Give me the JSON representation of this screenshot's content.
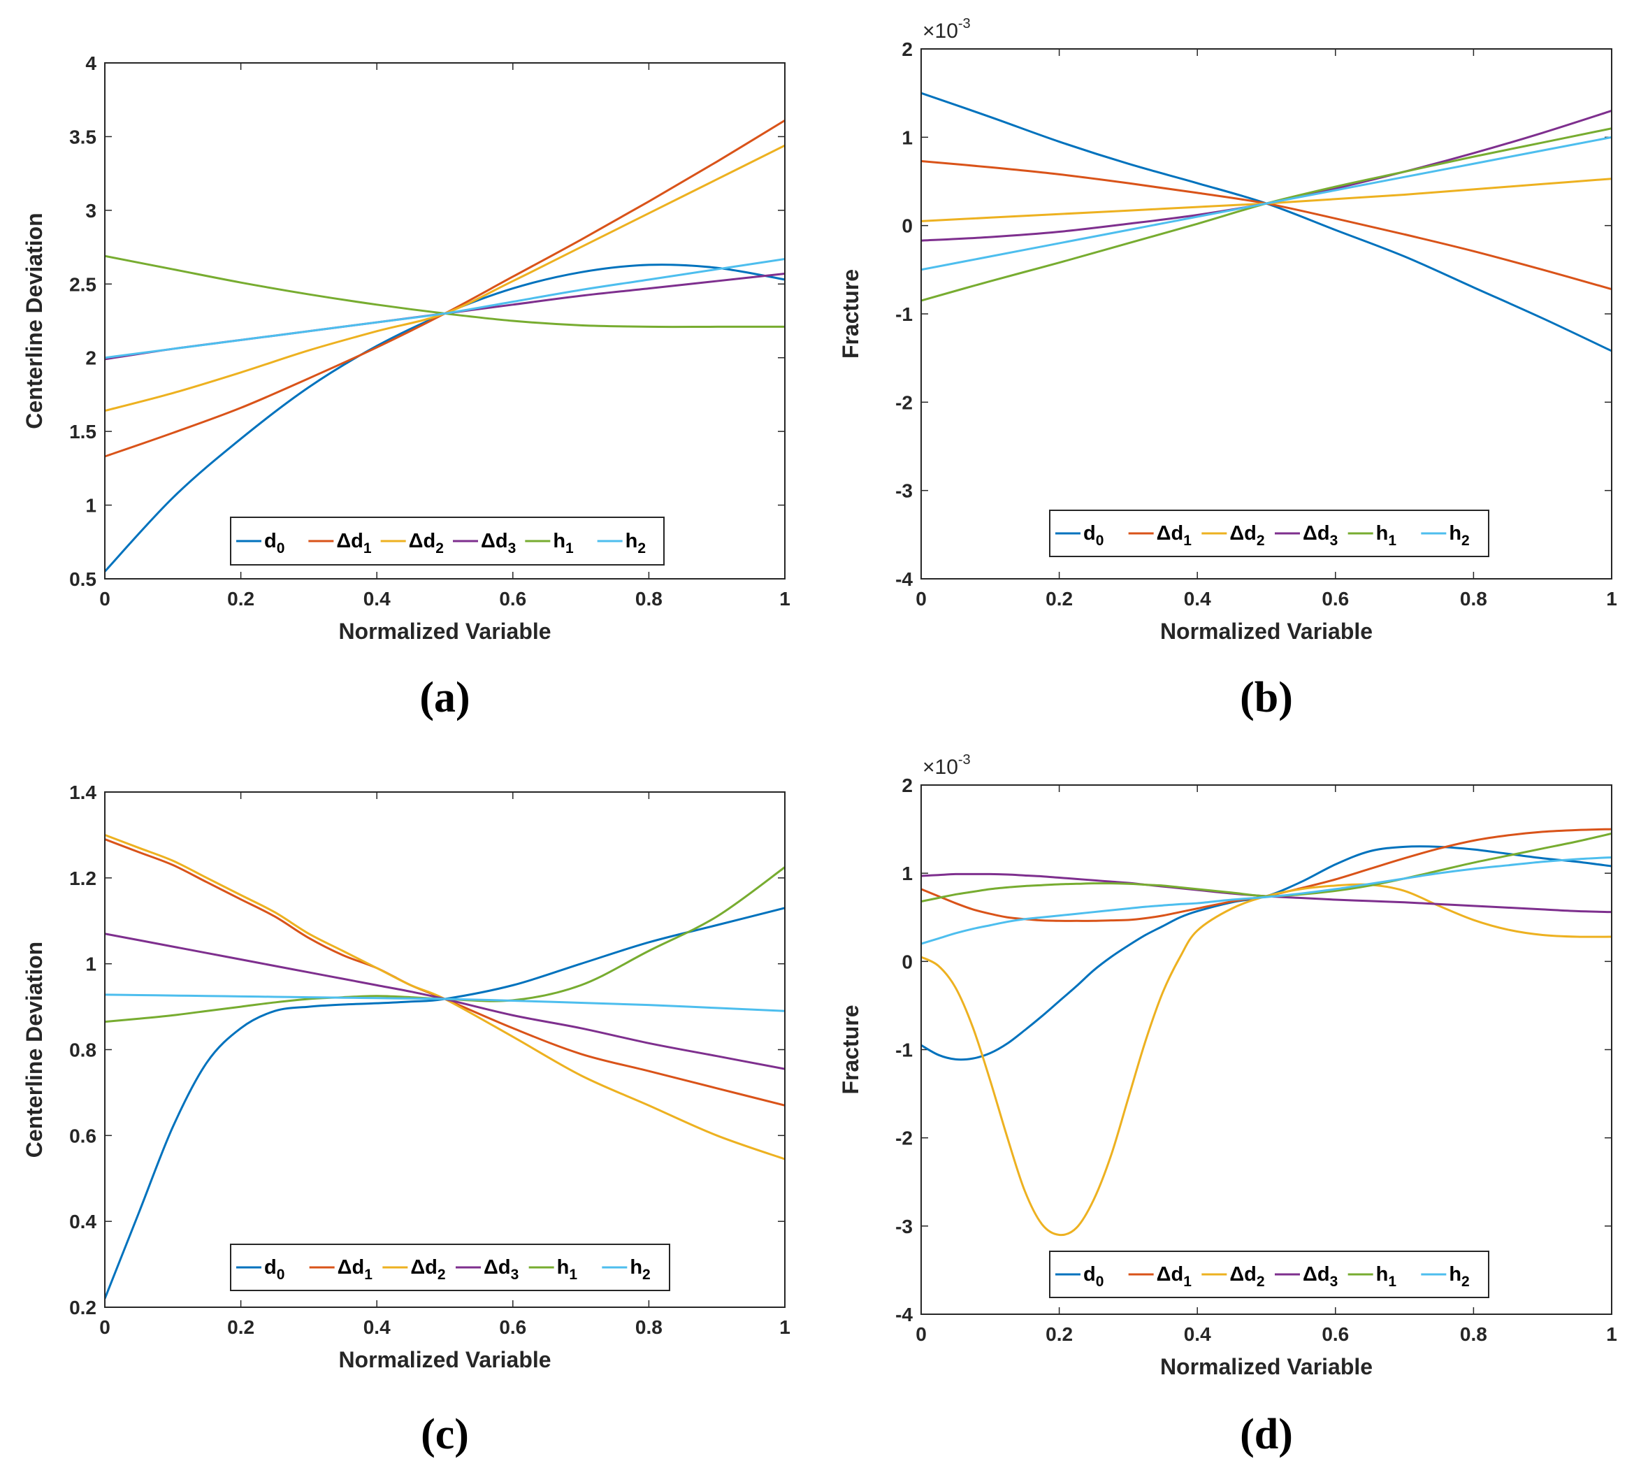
{
  "chart_data": [
    {
      "type": "line",
      "panel_label": "(a)",
      "xlabel": "Normalized Variable",
      "ylabel": "Centerline Deviation",
      "xlim": [
        0,
        1
      ],
      "ylim": [
        0.5,
        4
      ],
      "xticks": [
        0,
        0.2,
        0.4,
        0.6,
        0.8,
        1
      ],
      "xtick_labels": [
        "0",
        "0.2",
        "0.4",
        "0.6",
        "0.8",
        "1"
      ],
      "yticks": [
        0.5,
        1,
        1.5,
        2,
        2.5,
        3,
        3.5,
        4
      ],
      "ytick_labels": [
        "0.5",
        "1",
        "1.5",
        "2",
        "2.5",
        "3",
        "3.5",
        "4"
      ],
      "exponent": "",
      "legend": "bottom-center",
      "x": [
        0,
        0.1,
        0.2,
        0.3,
        0.4,
        0.5,
        0.6,
        0.7,
        0.8,
        0.9,
        1
      ],
      "series": [
        {
          "name": "d0",
          "values": [
            0.55,
            1.05,
            1.45,
            1.8,
            2.08,
            2.3,
            2.47,
            2.58,
            2.63,
            2.61,
            2.53
          ]
        },
        {
          "name": "Δd1",
          "values": [
            1.33,
            1.49,
            1.66,
            1.86,
            2.07,
            2.3,
            2.55,
            2.8,
            3.06,
            3.33,
            3.61
          ]
        },
        {
          "name": "Δd2",
          "values": [
            1.64,
            1.76,
            1.9,
            2.05,
            2.18,
            2.3,
            2.52,
            2.75,
            2.98,
            3.21,
            3.44
          ]
        },
        {
          "name": "Δd3",
          "values": [
            1.99,
            2.06,
            2.12,
            2.18,
            2.24,
            2.3,
            2.36,
            2.42,
            2.47,
            2.52,
            2.57
          ]
        },
        {
          "name": "h1",
          "values": [
            2.69,
            2.6,
            2.51,
            2.43,
            2.36,
            2.3,
            2.25,
            2.22,
            2.21,
            2.21,
            2.21
          ]
        },
        {
          "name": "h2",
          "values": [
            2.0,
            2.06,
            2.12,
            2.18,
            2.24,
            2.3,
            2.38,
            2.46,
            2.53,
            2.6,
            2.67
          ]
        }
      ]
    },
    {
      "type": "line",
      "panel_label": "(b)",
      "xlabel": "Normalized Variable",
      "ylabel": "Fracture",
      "xlim": [
        0,
        1
      ],
      "ylim": [
        -4,
        2
      ],
      "xticks": [
        0,
        0.2,
        0.4,
        0.6,
        0.8,
        1
      ],
      "xtick_labels": [
        "0",
        "0.2",
        "0.4",
        "0.6",
        "0.8",
        "1"
      ],
      "yticks": [
        -4,
        -3,
        -2,
        -1,
        0,
        1,
        2
      ],
      "ytick_labels": [
        "-4",
        "-3",
        "-2",
        "-1",
        "0",
        "1",
        "2"
      ],
      "exponent": "×10",
      "exponent_power": "-3",
      "legend": "bottom-center",
      "x": [
        0,
        0.1,
        0.2,
        0.3,
        0.4,
        0.5,
        0.6,
        0.7,
        0.8,
        0.9,
        1
      ],
      "series": [
        {
          "name": "d0",
          "values": [
            1.5,
            1.23,
            0.95,
            0.7,
            0.48,
            0.25,
            -0.05,
            -0.35,
            -0.7,
            -1.05,
            -1.42
          ]
        },
        {
          "name": "Δd1",
          "values": [
            0.73,
            0.66,
            0.58,
            0.48,
            0.37,
            0.25,
            0.08,
            -0.1,
            -0.29,
            -0.5,
            -0.72
          ]
        },
        {
          "name": "Δd2",
          "values": [
            0.05,
            0.09,
            0.13,
            0.17,
            0.21,
            0.25,
            0.3,
            0.35,
            0.41,
            0.47,
            0.53
          ]
        },
        {
          "name": "Δd3",
          "values": [
            -0.17,
            -0.13,
            -0.07,
            0.02,
            0.12,
            0.25,
            0.42,
            0.61,
            0.82,
            1.05,
            1.3
          ]
        },
        {
          "name": "h1",
          "values": [
            -0.85,
            -0.63,
            -0.42,
            -0.2,
            0.02,
            0.25,
            0.44,
            0.61,
            0.78,
            0.94,
            1.1
          ]
        },
        {
          "name": "h2",
          "values": [
            -0.5,
            -0.35,
            -0.2,
            -0.05,
            0.1,
            0.25,
            0.4,
            0.55,
            0.7,
            0.85,
            1.0
          ]
        }
      ]
    },
    {
      "type": "line",
      "panel_label": "(c)",
      "xlabel": "Normalized Variable",
      "ylabel": "Centerline Deviation",
      "xlim": [
        0,
        1
      ],
      "ylim": [
        0.2,
        1.4
      ],
      "xticks": [
        0,
        0.2,
        0.4,
        0.6,
        0.8,
        1
      ],
      "xtick_labels": [
        "0",
        "0.2",
        "0.4",
        "0.6",
        "0.8",
        "1"
      ],
      "yticks": [
        0.2,
        0.4,
        0.6,
        0.8,
        1,
        1.2,
        1.4
      ],
      "ytick_labels": [
        "0.2",
        "0.4",
        "0.6",
        "0.8",
        "1",
        "1.2",
        "1.4"
      ],
      "exponent": "",
      "legend": "bottom-center",
      "x": [
        0,
        0.05,
        0.1,
        0.15,
        0.2,
        0.25,
        0.3,
        0.35,
        0.4,
        0.45,
        0.5,
        0.6,
        0.7,
        0.8,
        0.9,
        1
      ],
      "series": [
        {
          "name": "d0",
          "values": [
            0.22,
            0.42,
            0.62,
            0.77,
            0.85,
            0.89,
            0.9,
            0.905,
            0.908,
            0.912,
            0.918,
            0.95,
            1.0,
            1.05,
            1.09,
            1.13
          ]
        },
        {
          "name": "Δd1",
          "values": [
            1.29,
            1.26,
            1.23,
            1.19,
            1.15,
            1.11,
            1.06,
            1.02,
            0.99,
            0.95,
            0.918,
            0.85,
            0.79,
            0.75,
            0.71,
            0.67
          ]
        },
        {
          "name": "Δd2",
          "values": [
            1.3,
            1.27,
            1.24,
            1.2,
            1.16,
            1.12,
            1.07,
            1.03,
            0.99,
            0.95,
            0.918,
            0.83,
            0.74,
            0.67,
            0.6,
            0.545
          ]
        },
        {
          "name": "Δd3",
          "values": [
            1.07,
            1.055,
            1.04,
            1.025,
            1.01,
            0.995,
            0.98,
            0.965,
            0.95,
            0.935,
            0.918,
            0.88,
            0.85,
            0.815,
            0.785,
            0.755
          ]
        },
        {
          "name": "h1",
          "values": [
            0.865,
            0.872,
            0.88,
            0.89,
            0.9,
            0.91,
            0.918,
            0.922,
            0.925,
            0.922,
            0.918,
            0.915,
            0.95,
            1.03,
            1.11,
            1.225
          ]
        },
        {
          "name": "h2",
          "values": [
            0.928,
            0.927,
            0.926,
            0.925,
            0.924,
            0.923,
            0.922,
            0.921,
            0.92,
            0.919,
            0.918,
            0.914,
            0.909,
            0.904,
            0.897,
            0.89
          ]
        }
      ]
    },
    {
      "type": "line",
      "panel_label": "(d)",
      "xlabel": "Normalized Variable",
      "ylabel": "Fracture",
      "xlim": [
        0,
        1
      ],
      "ylim": [
        -4,
        2
      ],
      "xticks": [
        0,
        0.2,
        0.4,
        0.6,
        0.8,
        1
      ],
      "xtick_labels": [
        "0",
        "0.2",
        "0.4",
        "0.6",
        "0.8",
        "1"
      ],
      "yticks": [
        -4,
        -3,
        -2,
        -1,
        0,
        1,
        2
      ],
      "ytick_labels": [
        "-4",
        "-3",
        "-2",
        "-1",
        "0",
        "1",
        "2"
      ],
      "exponent": "×10",
      "exponent_power": "-3",
      "legend": "bottom-center",
      "x": [
        0,
        0.025,
        0.05,
        0.075,
        0.1,
        0.125,
        0.15,
        0.175,
        0.2,
        0.225,
        0.25,
        0.275,
        0.3,
        0.325,
        0.35,
        0.375,
        0.4,
        0.45,
        0.5,
        0.55,
        0.6,
        0.65,
        0.7,
        0.75,
        0.8,
        0.85,
        0.9,
        0.95,
        1
      ],
      "series": [
        {
          "name": "d0",
          "values": [
            -0.95,
            -1.06,
            -1.11,
            -1.1,
            -1.04,
            -0.93,
            -0.78,
            -0.62,
            -0.45,
            -0.28,
            -0.1,
            0.05,
            0.18,
            0.3,
            0.4,
            0.5,
            0.57,
            0.67,
            0.74,
            0.9,
            1.1,
            1.25,
            1.3,
            1.3,
            1.27,
            1.22,
            1.17,
            1.13,
            1.08
          ]
        },
        {
          "name": "Δd1",
          "values": [
            0.82,
            0.74,
            0.66,
            0.59,
            0.54,
            0.5,
            0.48,
            0.465,
            0.46,
            0.46,
            0.46,
            0.465,
            0.47,
            0.49,
            0.52,
            0.56,
            0.6,
            0.68,
            0.74,
            0.83,
            0.93,
            1.05,
            1.17,
            1.28,
            1.37,
            1.43,
            1.47,
            1.49,
            1.5
          ]
        },
        {
          "name": "Δd2",
          "values": [
            0.05,
            -0.05,
            -0.3,
            -0.75,
            -1.35,
            -2.0,
            -2.6,
            -2.98,
            -3.1,
            -3.02,
            -2.7,
            -2.2,
            -1.55,
            -0.9,
            -0.35,
            0.05,
            0.35,
            0.6,
            0.74,
            0.82,
            0.86,
            0.87,
            0.8,
            0.63,
            0.47,
            0.36,
            0.3,
            0.28,
            0.28
          ]
        },
        {
          "name": "Δd3",
          "values": [
            0.97,
            0.98,
            0.99,
            0.99,
            0.99,
            0.985,
            0.975,
            0.965,
            0.95,
            0.935,
            0.92,
            0.905,
            0.89,
            0.87,
            0.85,
            0.83,
            0.81,
            0.77,
            0.74,
            0.72,
            0.7,
            0.685,
            0.67,
            0.65,
            0.63,
            0.61,
            0.59,
            0.57,
            0.56
          ]
        },
        {
          "name": "h1",
          "values": [
            0.68,
            0.72,
            0.76,
            0.79,
            0.82,
            0.84,
            0.855,
            0.865,
            0.875,
            0.88,
            0.885,
            0.885,
            0.88,
            0.87,
            0.86,
            0.84,
            0.82,
            0.78,
            0.74,
            0.76,
            0.8,
            0.86,
            0.94,
            1.03,
            1.12,
            1.2,
            1.28,
            1.36,
            1.45
          ]
        },
        {
          "name": "h2",
          "values": [
            0.2,
            0.26,
            0.32,
            0.37,
            0.41,
            0.45,
            0.48,
            0.5,
            0.52,
            0.54,
            0.56,
            0.58,
            0.6,
            0.62,
            0.635,
            0.65,
            0.66,
            0.7,
            0.73,
            0.77,
            0.82,
            0.88,
            0.94,
            1.0,
            1.05,
            1.09,
            1.13,
            1.16,
            1.18
          ]
        }
      ]
    }
  ],
  "legend_entries": [
    {
      "prefix": "",
      "base": "d",
      "sub": "0"
    },
    {
      "prefix": "Δ",
      "base": "d",
      "sub": "1"
    },
    {
      "prefix": "Δ",
      "base": "d",
      "sub": "2"
    },
    {
      "prefix": "Δ",
      "base": "d",
      "sub": "3"
    },
    {
      "prefix": "",
      "base": "h",
      "sub": "1"
    },
    {
      "prefix": "",
      "base": "h",
      "sub": "2"
    }
  ],
  "colors": [
    "#0072BD",
    "#D95319",
    "#EDB120",
    "#7E2F8E",
    "#77AC30",
    "#4DBEEE"
  ]
}
